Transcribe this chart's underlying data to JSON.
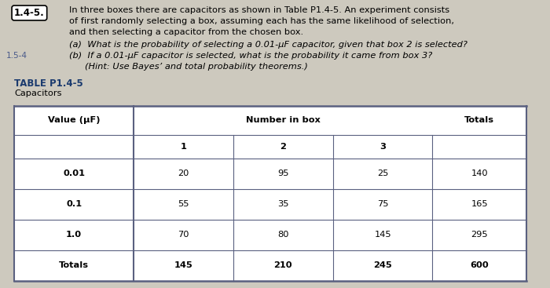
{
  "title_label": "1.4-5.",
  "problem_lines": [
    "In three boxes there are capacitors as shown in Table P1.4-5. An experiment consists",
    "of first randomly selecting a box, assuming each has the same likelihood of selection,",
    "and then selecting a capacitor from the chosen box."
  ],
  "part_a": "(a)  What is the probability of selecting a 0.01-μF capacitor, given that box 2 is selected?",
  "part_b_num": "1.5-4",
  "part_b": "(b)  If a 0.01-μF capacitor is selected, what is the probability it came from box 3?",
  "hint": "        (Hint: Use Bayes’ and total probability theorems.)",
  "table_title": "TABLE P1.4-5",
  "table_subtitle": "Capacitors",
  "col_headers": [
    "Value (μF)",
    "Number in box",
    "Totals"
  ],
  "sub_headers": [
    "1",
    "2",
    "3"
  ],
  "rows": [
    [
      "0.01",
      "20",
      "95",
      "25",
      "140"
    ],
    [
      "0.1",
      "55",
      "35",
      "75",
      "165"
    ],
    [
      "1.0",
      "70",
      "80",
      "145",
      "295"
    ],
    [
      "Totals",
      "145",
      "210",
      "245",
      "600"
    ]
  ],
  "bg_color": "#cdc9be",
  "border_color": "#5a6080",
  "header_color": "#1a3a6e",
  "left_num_color": "#4a5a8a"
}
